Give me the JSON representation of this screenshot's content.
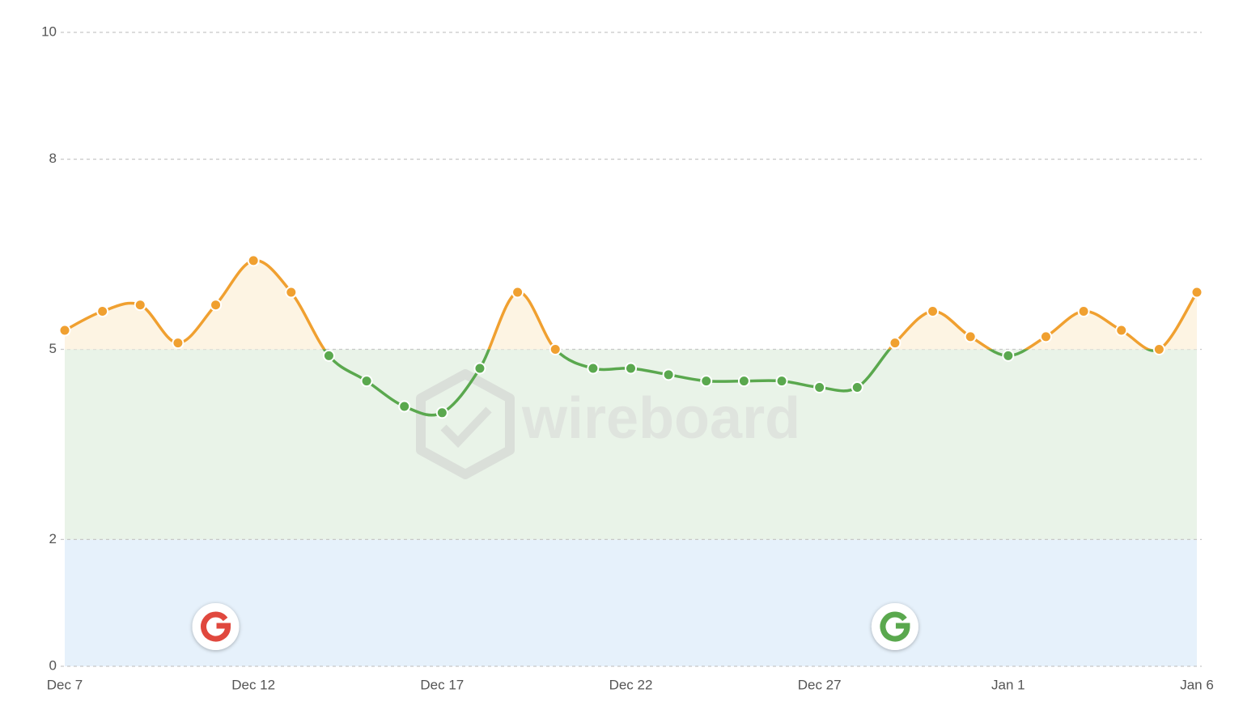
{
  "chart_data": {
    "type": "line",
    "watermark": "wireboard",
    "categories": [
      "Dec 7",
      null,
      null,
      null,
      null,
      "Dec 12",
      null,
      null,
      null,
      null,
      "Dec 17",
      null,
      null,
      null,
      null,
      "Dec 22",
      null,
      null,
      null,
      null,
      "Dec 27",
      null,
      null,
      null,
      null,
      "Jan 1",
      null,
      null,
      null,
      null,
      "Jan 6"
    ],
    "values": [
      5.3,
      5.6,
      5.7,
      5.1,
      5.7,
      6.4,
      5.9,
      4.9,
      4.5,
      4.1,
      4.0,
      4.7,
      5.9,
      5.0,
      4.7,
      4.7,
      4.6,
      4.5,
      4.5,
      4.5,
      4.4,
      4.4,
      5.1,
      5.6,
      5.2,
      4.9,
      5.2,
      5.6,
      5.3,
      5.0,
      5.9
    ],
    "threshold": 5,
    "color_above": "#f0a030",
    "color_below": "#5aa84e",
    "bands": [
      {
        "from": 0,
        "to": 2,
        "color": "#e6f1fb"
      },
      {
        "from": 2,
        "to": 5,
        "color": "#e9f3e8"
      }
    ],
    "area_above_color": "#fdf4e3",
    "events": [
      {
        "index": 4,
        "color": "#e0483e"
      },
      {
        "index": 22,
        "color": "#5aa84e"
      }
    ],
    "ylim": [
      0,
      10
    ],
    "yticks": [
      0,
      2,
      5,
      8,
      10
    ],
    "grid": true
  }
}
